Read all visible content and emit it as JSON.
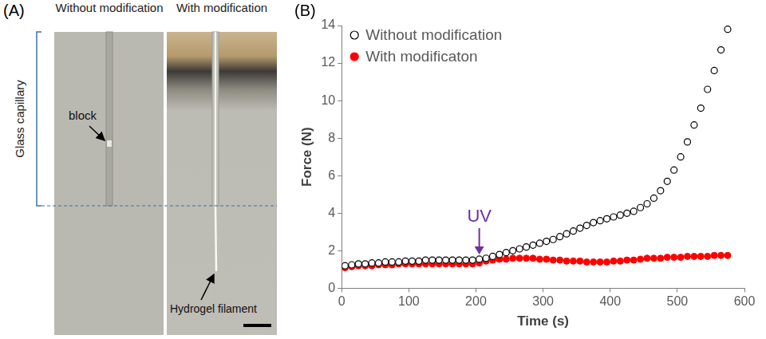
{
  "panel_a": {
    "label": "(A)",
    "columns": [
      "Without modification",
      "With modification"
    ],
    "bracket_label": "Glass capillary",
    "annotations": [
      "block",
      "Hydrogel filament"
    ]
  },
  "chart_data": {
    "panel_label": "(B)",
    "type": "scatter",
    "x_label": "Time (s)",
    "y_label": "Force (N)",
    "xlim": [
      0,
      600
    ],
    "xticks": [
      0,
      100,
      200,
      300,
      400,
      500,
      600
    ],
    "ylim": [
      0,
      14
    ],
    "yticks": [
      0,
      2,
      4,
      6,
      8,
      10,
      12,
      14
    ],
    "grid": false,
    "legend": "upper left",
    "x": [
      5,
      15,
      25,
      35,
      45,
      55,
      65,
      75,
      85,
      95,
      105,
      115,
      125,
      135,
      145,
      155,
      165,
      175,
      185,
      195,
      205,
      215,
      225,
      235,
      245,
      255,
      265,
      275,
      285,
      295,
      305,
      315,
      325,
      335,
      345,
      355,
      365,
      375,
      385,
      395,
      405,
      415,
      425,
      435,
      445,
      455,
      465,
      475,
      485,
      495,
      505,
      515,
      525,
      535,
      545,
      555,
      565,
      575
    ],
    "series": [
      {
        "name": "Without modification",
        "color": "#000000",
        "marker": "open_circle",
        "values": [
          1.2,
          1.25,
          1.3,
          1.3,
          1.35,
          1.35,
          1.4,
          1.4,
          1.4,
          1.45,
          1.45,
          1.45,
          1.5,
          1.5,
          1.5,
          1.5,
          1.5,
          1.5,
          1.5,
          1.5,
          1.55,
          1.6,
          1.7,
          1.8,
          1.9,
          2.0,
          2.1,
          2.2,
          2.3,
          2.4,
          2.5,
          2.6,
          2.75,
          2.9,
          3.05,
          3.2,
          3.35,
          3.5,
          3.6,
          3.7,
          3.8,
          3.9,
          4.0,
          4.1,
          4.3,
          4.5,
          4.8,
          5.2,
          5.7,
          6.3,
          7.0,
          7.8,
          8.7,
          9.6,
          10.6,
          11.6,
          12.7,
          13.8
        ]
      },
      {
        "name": "With modificaton",
        "color": "#ff0000",
        "marker": "circle",
        "values": [
          1.1,
          1.15,
          1.2,
          1.2,
          1.2,
          1.25,
          1.25,
          1.25,
          1.3,
          1.3,
          1.3,
          1.3,
          1.3,
          1.3,
          1.3,
          1.3,
          1.3,
          1.3,
          1.3,
          1.3,
          1.35,
          1.45,
          1.5,
          1.55,
          1.55,
          1.6,
          1.6,
          1.6,
          1.6,
          1.55,
          1.55,
          1.5,
          1.5,
          1.45,
          1.45,
          1.45,
          1.4,
          1.4,
          1.4,
          1.4,
          1.45,
          1.45,
          1.5,
          1.5,
          1.55,
          1.6,
          1.6,
          1.6,
          1.65,
          1.65,
          1.65,
          1.7,
          1.7,
          1.7,
          1.7,
          1.75,
          1.75,
          1.75
        ]
      }
    ],
    "annotations": [
      {
        "text": "UV",
        "x": 205,
        "y": 3.8,
        "arrow_to": 1.8,
        "color": "#7030a0"
      }
    ]
  }
}
